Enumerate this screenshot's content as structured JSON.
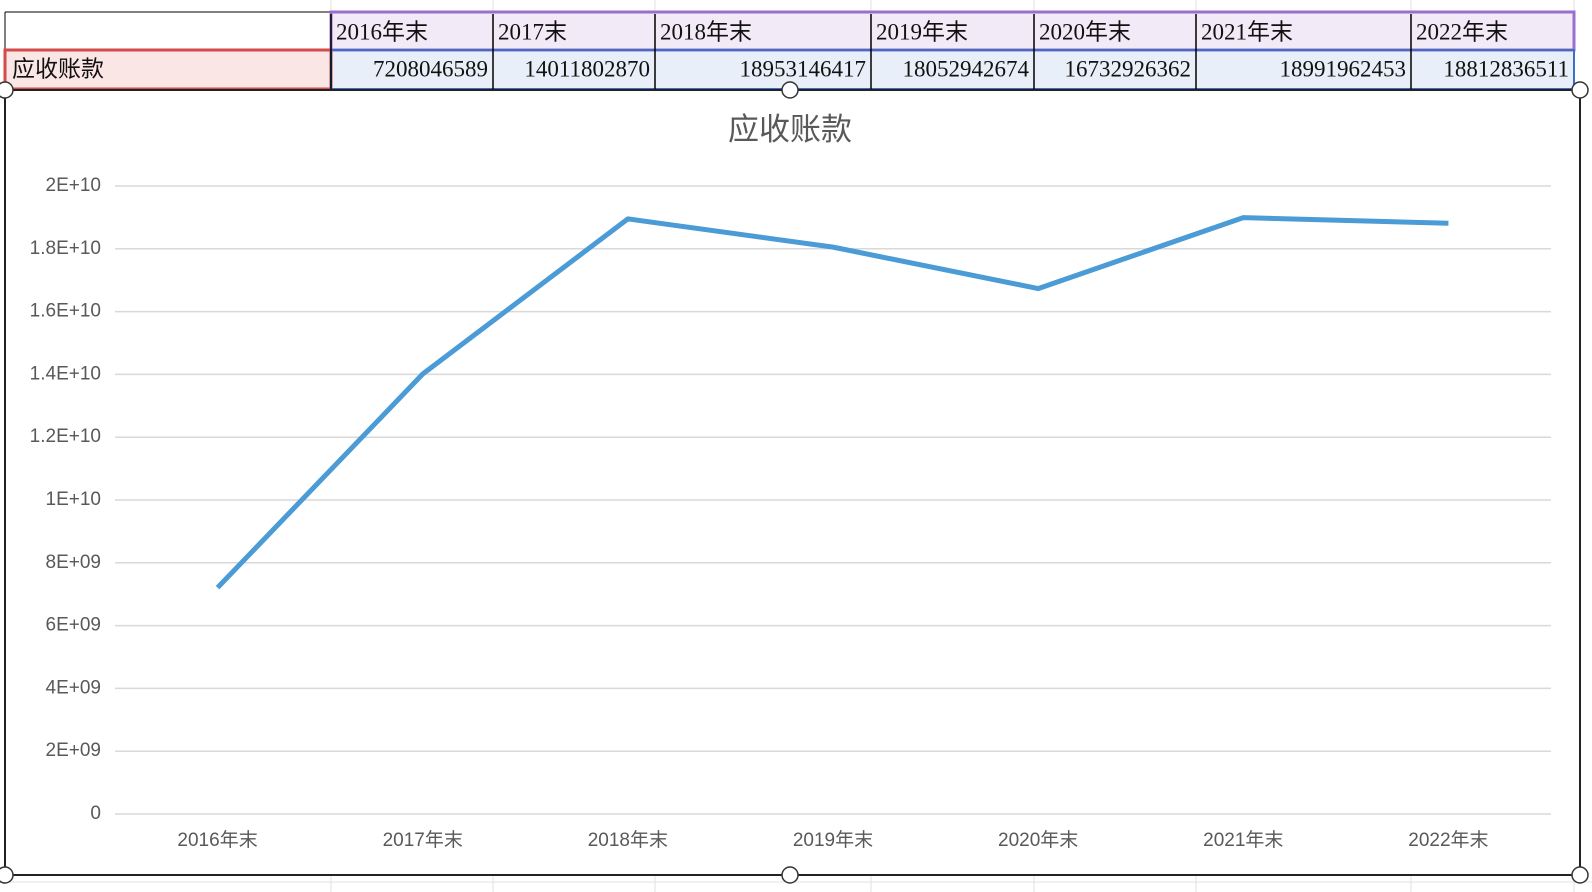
{
  "table": {
    "columns": [
      "2016年末",
      "2017末",
      "2018年末",
      "2019年末",
      "2020年末",
      "2021年末",
      "2022年末"
    ],
    "rows": [
      {
        "label": "应收账款",
        "values": [
          7208046589,
          14011802870,
          18953146417,
          18052942674,
          16732926362,
          18991962453,
          18812836511
        ]
      }
    ]
  },
  "chart_data": {
    "type": "line",
    "title": "应收账款",
    "categories": [
      "2016年末",
      "2017年末",
      "2018年末",
      "2019年末",
      "2020年末",
      "2021年末",
      "2022年末"
    ],
    "series": [
      {
        "name": "应收账款",
        "color": "#4a9bd6",
        "values": [
          7208046589,
          14011802870,
          18953146417,
          18052942674,
          16732926362,
          18991962453,
          18812836511
        ]
      }
    ],
    "ylim": [
      0,
      20000000000
    ],
    "yticks": [
      0,
      {
        "value": 2000000000,
        "label": "2E+09"
      },
      {
        "value": 4000000000,
        "label": "4E+09"
      },
      {
        "value": 6000000000,
        "label": "6E+09"
      },
      {
        "value": 8000000000,
        "label": "8E+09"
      },
      {
        "value": 10000000000,
        "label": "1E+10"
      },
      {
        "value": 12000000000,
        "label": "1.2E+10"
      },
      {
        "value": 14000000000,
        "label": "1.4E+10"
      },
      {
        "value": 16000000000,
        "label": "1.6E+10"
      },
      {
        "value": 18000000000,
        "label": "1.8E+10"
      },
      {
        "value": 20000000000,
        "label": "2E+10"
      }
    ],
    "grid": true
  }
}
